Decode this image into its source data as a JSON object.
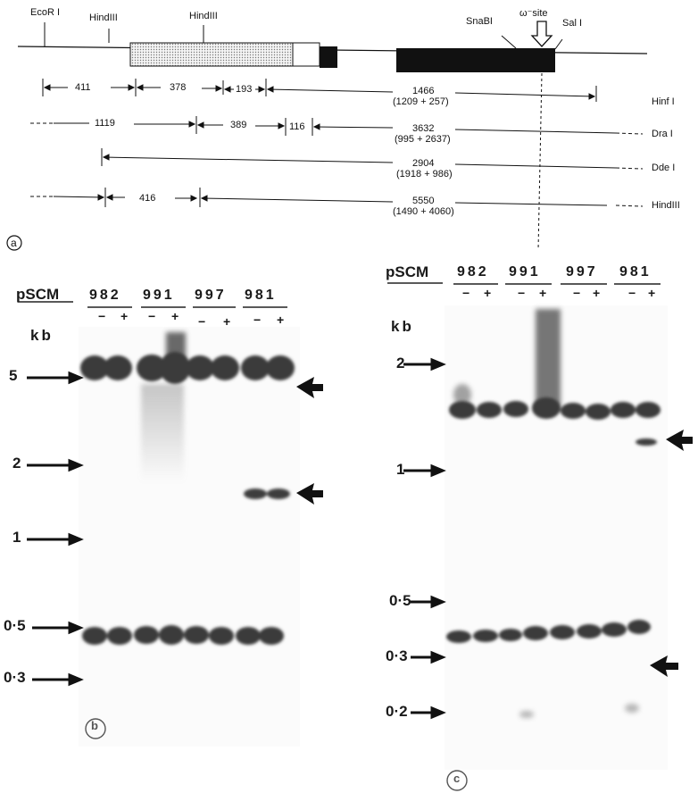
{
  "panel_a": {
    "label": "a",
    "sites": [
      "EcoR I",
      "HindIII",
      "HindIII",
      "SnaBI",
      "ω⁻site",
      "Sal I"
    ],
    "rows": [
      {
        "enzyme": "Hinf I",
        "fragments": [
          "411",
          "378",
          "193",
          "1466"
        ],
        "sub": "(1209 + 257)"
      },
      {
        "enzyme": "Dra I",
        "fragments": [
          "1119",
          "389",
          "116",
          "3632"
        ],
        "sub": "(995 + 2637)"
      },
      {
        "enzyme": "Dde I",
        "fragments": [
          "2904"
        ],
        "sub": "(1918 + 986)"
      },
      {
        "enzyme": "HindIII",
        "fragments": [
          "416",
          "5550"
        ],
        "sub": "(1490 + 4060)"
      }
    ]
  },
  "panel_b": {
    "label": "b",
    "plasmid_label": "pSCM",
    "plasmids": [
      "982",
      "991",
      "997",
      "981"
    ],
    "lane_signs": [
      "−",
      "+"
    ],
    "unit": "kb",
    "markers": [
      "5",
      "2",
      "1",
      "0·5",
      "0·3"
    ]
  },
  "panel_c": {
    "label": "c",
    "plasmid_label": "pSCM",
    "plasmids": [
      "982",
      "991",
      "997",
      "981"
    ],
    "lane_signs": [
      "−",
      "+"
    ],
    "unit": "kb",
    "markers": [
      "2",
      "1",
      "0·5",
      "0·3",
      "0·2"
    ]
  }
}
